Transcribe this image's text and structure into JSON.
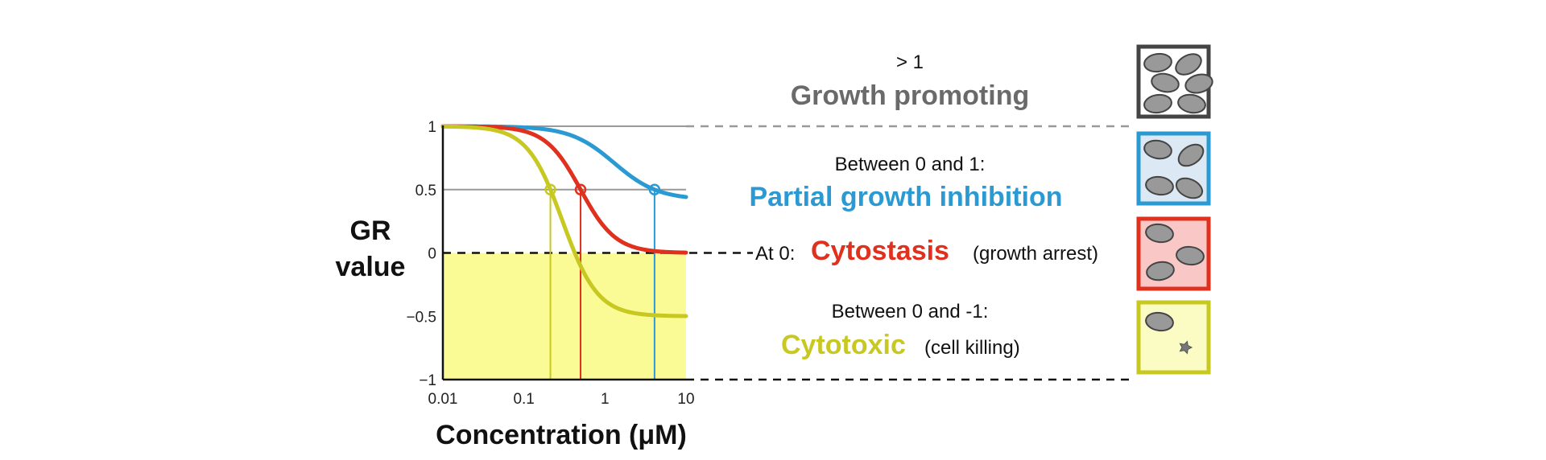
{
  "chart_data": {
    "type": "line",
    "xlabel": "Concentration (μM)",
    "ylabel_line1": "GR",
    "ylabel_line2": "value",
    "x_scale": "log",
    "xlim": [
      0.01,
      10
    ],
    "ylim": [
      -1,
      1
    ],
    "x_ticks": [
      "0.01",
      "0.1",
      "1",
      "10"
    ],
    "x_tick_values": [
      0.01,
      0.1,
      1,
      10
    ],
    "y_ticks": [
      "−1",
      "−0.5",
      "0",
      "0.5",
      "1"
    ],
    "y_tick_values": [
      -1,
      -0.5,
      0,
      0.5,
      1
    ],
    "series": [
      {
        "color": "#2b9ad3",
        "gr_inf": 0.42,
        "gr50": 1.3,
        "hill": 1.6,
        "max_concentration": 10
      },
      {
        "color": "#e0301e",
        "gr_inf": 0.0,
        "gr50": 0.5,
        "hill": 2.0,
        "max_concentration": 10
      },
      {
        "color": "#c8c822",
        "gr_inf": -0.5,
        "gr50": 0.3,
        "hill": 2.0,
        "max_concentration": 10
      }
    ],
    "reference_lines": [
      1,
      0.5
    ],
    "reference_color": "#999999",
    "shaded_region": {
      "y_from": -1,
      "y_to": 0,
      "color": "#fbfb96"
    }
  },
  "categories": {
    "growth_promoting": {
      "range": "> 1",
      "name": "Growth promoting",
      "color": "#6a6a6a"
    },
    "partial_inhibition": {
      "range": "Between 0 and 1:",
      "name": "Partial growth inhibition",
      "color": "#2b9ad3"
    },
    "cytostasis": {
      "prefix": "At 0:",
      "name": "Cytostasis",
      "suffix": "(growth arrest)",
      "color": "#e0301e"
    },
    "cytotoxic": {
      "range": "Between 0 and -1:",
      "name": "Cytotoxic",
      "suffix": "(cell killing)",
      "color": "#c8c822"
    }
  },
  "panels": [
    {
      "key": "growth-promoting",
      "border": "#444444",
      "fill": "#ffffff",
      "cells": 6,
      "dead_cells": 0
    },
    {
      "key": "partial-inhibition",
      "border": "#2b9ad3",
      "fill": "#dce9f5",
      "cells": 4,
      "dead_cells": 0
    },
    {
      "key": "cytostasis",
      "border": "#e0301e",
      "fill": "#f9c8c6",
      "cells": 3,
      "dead_cells": 0
    },
    {
      "key": "cytotoxic",
      "border": "#c8c822",
      "fill": "#fbfbc4",
      "cells": 1,
      "dead_cells": 1
    }
  ]
}
